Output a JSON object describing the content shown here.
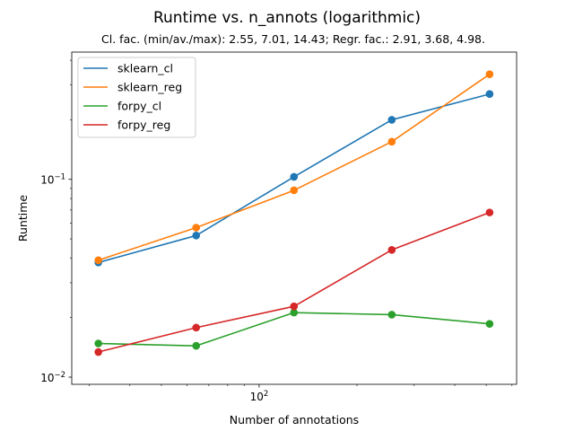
{
  "chart_data": {
    "type": "line",
    "title": "Runtime vs. n_annots (logarithmic)",
    "subtitle": "Cl. fac. (min/av./max): 2.55, 7.01, 14.43; Regr. fac.: 2.91, 3.68, 4.98.",
    "xlabel": "Number of annotations",
    "ylabel": "Runtime",
    "x_scale": "log",
    "y_scale": "log",
    "x": [
      32,
      64,
      128,
      256,
      512
    ],
    "xlim": [
      26.5,
      620
    ],
    "ylim": [
      0.0092,
      0.44
    ],
    "x_ticks": [
      {
        "value": 100,
        "label": "10",
        "exp": "2"
      }
    ],
    "y_ticks": [
      {
        "value": 0.01,
        "label": "10",
        "exp": "−2"
      },
      {
        "value": 0.1,
        "label": "10",
        "exp": "−1"
      }
    ],
    "legend_position": "upper-left",
    "grid": false,
    "series": [
      {
        "name": "sklearn_cl",
        "color": "#1f77b4",
        "values": [
          0.038,
          0.052,
          0.103,
          0.2,
          0.27
        ]
      },
      {
        "name": "sklearn_reg",
        "color": "#ff7f0e",
        "values": [
          0.039,
          0.057,
          0.088,
          0.155,
          0.34
        ]
      },
      {
        "name": "forpy_cl",
        "color": "#2ca02c",
        "values": [
          0.0148,
          0.0144,
          0.0212,
          0.0207,
          0.0186
        ]
      },
      {
        "name": "forpy_reg",
        "color": "#d62728",
        "values": [
          0.0134,
          0.0178,
          0.0228,
          0.044,
          0.068
        ]
      }
    ]
  }
}
